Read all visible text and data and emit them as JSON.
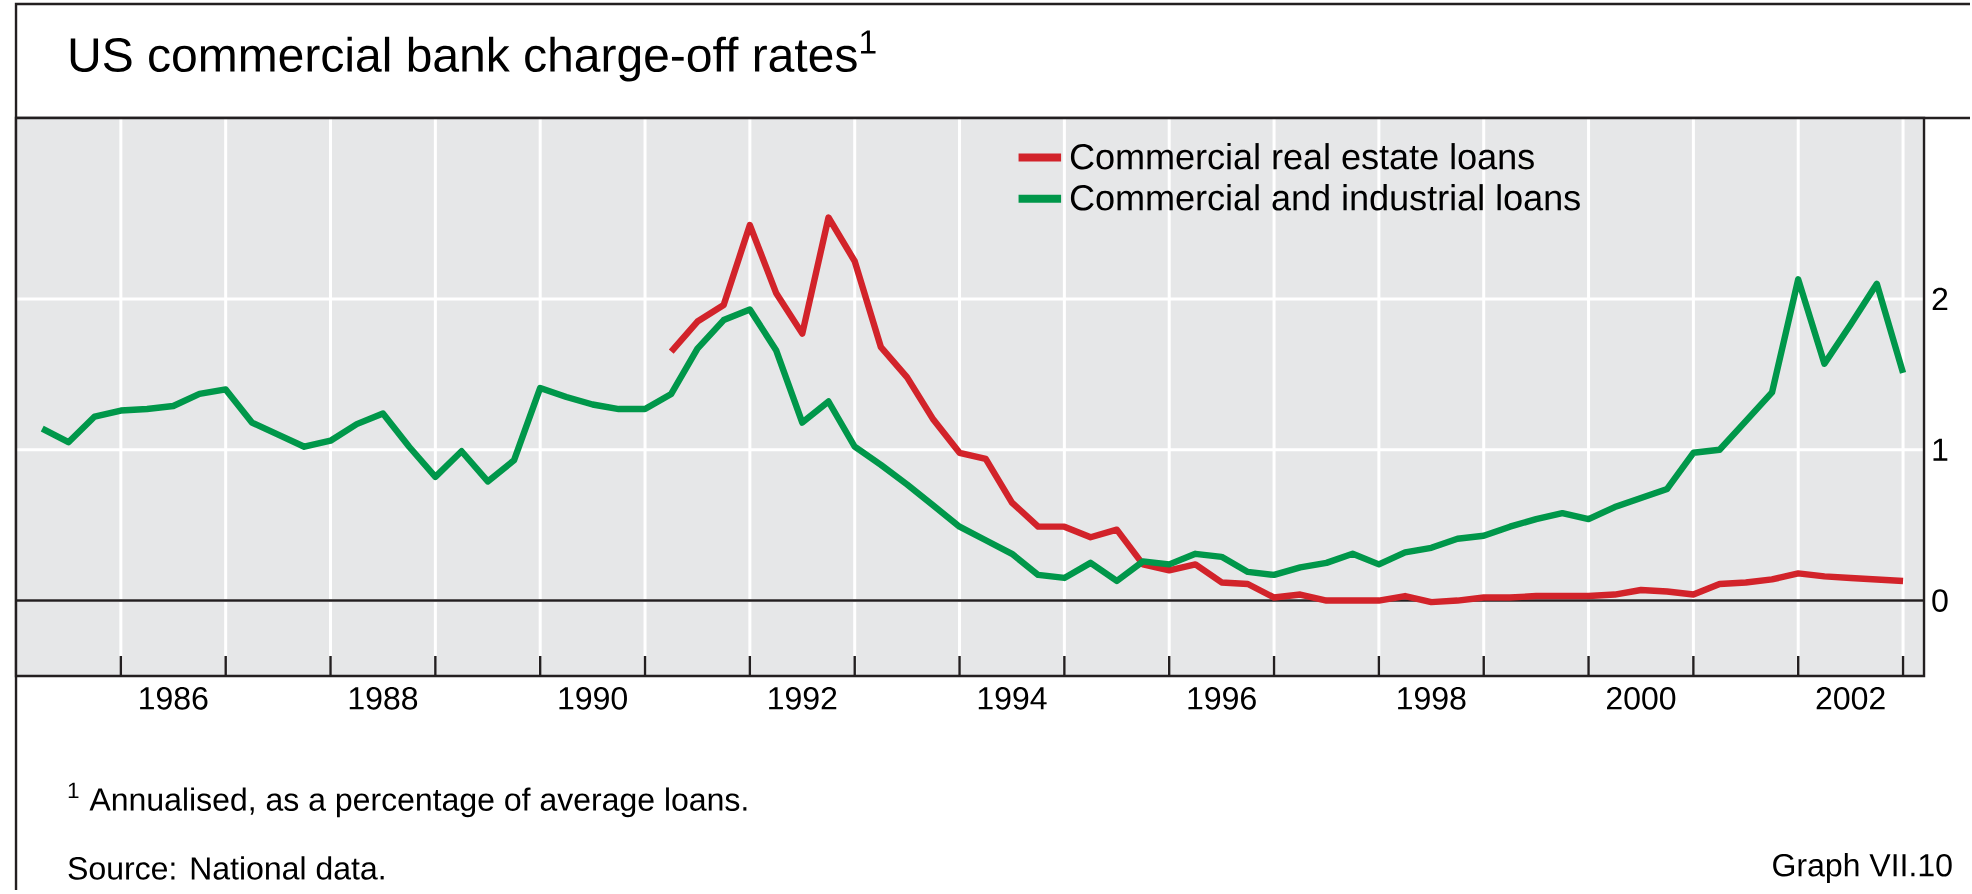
{
  "chart_data": {
    "type": "line",
    "title": "US commercial bank charge-off rates$^{1}$",
    "annotations": [
      "$^{1}$ Annualised, as a percentage of average loans.",
      "Source: National data.",
      "Graph VII.10"
    ],
    "xlim": [
      1985,
      2003.2
    ],
    "xticks": [
      {
        "value": 1986,
        "label": null
      },
      {
        "value": 1987,
        "label": null
      },
      {
        "value": 1988,
        "label": null
      },
      {
        "value": 1989,
        "label": null
      },
      {
        "value": 1990,
        "label": null
      },
      {
        "value": 1991,
        "label": null
      },
      {
        "value": 1992,
        "label": null
      },
      {
        "value": 1993,
        "label": null
      },
      {
        "value": 1994,
        "label": null
      },
      {
        "value": 1995,
        "label": null
      },
      {
        "value": 1996,
        "label": null
      },
      {
        "value": 1997,
        "label": null
      },
      {
        "value": 1998,
        "label": null
      },
      {
        "value": 1999,
        "label": null
      },
      {
        "value": 2000,
        "label": null
      },
      {
        "value": 2001,
        "label": null
      },
      {
        "value": 2002,
        "label": null
      },
      {
        "value": 2003,
        "label": null
      },
      {
        "value": 1986.5,
        "label": "1986"
      },
      {
        "value": 1988.5,
        "label": "1988"
      },
      {
        "value": 1990.5,
        "label": "1990"
      },
      {
        "value": 1992.5,
        "label": "1992"
      },
      {
        "value": 1994.5,
        "label": "1994"
      },
      {
        "value": 1996.5,
        "label": "1996"
      },
      {
        "value": 1998.5,
        "label": "1998"
      },
      {
        "value": 2000.5,
        "label": "2000"
      },
      {
        "value": 2002.5,
        "label": "2002"
      }
    ],
    "ylim": [
      -0.5,
      3.2
    ],
    "yticks": [
      0,
      1,
      2
    ],
    "grid": true,
    "legend": "top right",
    "ref_lines": [
      {
        "axis": "y",
        "value": 0,
        "color": "#231f20"
      }
    ],
    "series": [
      {
        "name": "Commercial real estate loans",
        "color": "#d2232a",
        "x": [
          1991.25,
          1991.5,
          1991.75,
          1992,
          1992.25,
          1992.5,
          1992.75,
          1993,
          1993.25,
          1993.5,
          1993.75,
          1994,
          1994.25,
          1994.5,
          1994.75,
          1995,
          1995.25,
          1995.5,
          1995.75,
          1996,
          1996.25,
          1996.5,
          1996.75,
          1997,
          1997.25,
          1997.5,
          1997.75,
          1998,
          1998.25,
          1998.5,
          1998.75,
          1999,
          1999.25,
          1999.5,
          1999.75,
          2000,
          2000.25,
          2000.5,
          2000.75,
          2001,
          2001.25,
          2001.5,
          2001.75,
          2002,
          2002.25,
          2002.5,
          2002.75,
          2003
        ],
        "values": [
          1.65,
          1.85,
          1.96,
          2.49,
          2.04,
          1.77,
          2.54,
          2.25,
          1.68,
          1.48,
          1.2,
          0.98,
          0.94,
          0.65,
          0.49,
          0.49,
          0.42,
          0.47,
          0.24,
          0.2,
          0.24,
          0.12,
          0.11,
          0.02,
          0.04,
          0.0,
          0.0,
          0.0,
          0.03,
          -0.01,
          0.0,
          0.02,
          0.02,
          0.03,
          0.03,
          0.03,
          0.04,
          0.07,
          0.06,
          0.04,
          0.11,
          0.12,
          0.14,
          0.18,
          0.16,
          0.15,
          0.14,
          0.13
        ]
      },
      {
        "name": "Commercial and industrial loans",
        "color": "#00974a",
        "x": [
          1985.25,
          1985.5,
          1985.75,
          1986,
          1986.25,
          1986.5,
          1986.75,
          1987,
          1987.25,
          1987.5,
          1987.75,
          1988,
          1988.25,
          1988.5,
          1988.75,
          1989,
          1989.25,
          1989.5,
          1989.75,
          1990,
          1990.25,
          1990.5,
          1990.75,
          1991,
          1991.25,
          1991.5,
          1991.75,
          1992,
          1992.25,
          1992.5,
          1992.75,
          1993,
          1993.25,
          1993.5,
          1993.75,
          1994,
          1994.25,
          1994.5,
          1994.75,
          1995,
          1995.25,
          1995.5,
          1995.75,
          1996,
          1996.25,
          1996.5,
          1996.75,
          1997,
          1997.25,
          1997.5,
          1997.75,
          1998,
          1998.25,
          1998.5,
          1998.75,
          1999,
          1999.25,
          1999.5,
          1999.75,
          2000,
          2000.25,
          2000.5,
          2000.75,
          2001,
          2001.25,
          2001.5,
          2001.75,
          2002,
          2002.25,
          2002.5,
          2002.75,
          2003
        ],
        "values": [
          1.14,
          1.05,
          1.22,
          1.26,
          1.27,
          1.29,
          1.37,
          1.4,
          1.18,
          1.1,
          1.02,
          1.06,
          1.17,
          1.24,
          1.02,
          0.82,
          0.99,
          0.79,
          0.93,
          1.41,
          1.35,
          1.3,
          1.27,
          1.27,
          1.37,
          1.67,
          1.86,
          1.93,
          1.66,
          1.18,
          1.32,
          1.02,
          0.9,
          0.77,
          0.63,
          0.49,
          0.4,
          0.31,
          0.17,
          0.15,
          0.25,
          0.13,
          0.26,
          0.24,
          0.31,
          0.29,
          0.19,
          0.17,
          0.22,
          0.25,
          0.31,
          0.24,
          0.32,
          0.35,
          0.41,
          0.43,
          0.49,
          0.54,
          0.58,
          0.54,
          0.62,
          0.68,
          0.74,
          0.98,
          1.0,
          1.19,
          1.38,
          2.13,
          1.57,
          1.83,
          2.1,
          1.51
        ]
      }
    ]
  }
}
